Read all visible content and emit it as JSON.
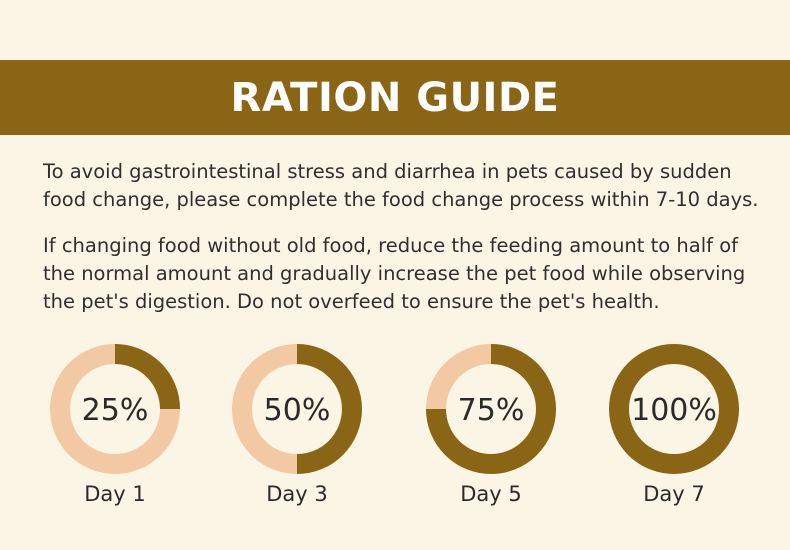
{
  "banner": {
    "title": "RATION GUIDE",
    "background_color": "#8a6515"
  },
  "paragraphs": [
    "To avoid gastrointestinal stress and diarrhea in pets caused by sudden food change, please complete the food change process within 7-10 days.",
    "If changing food without old food, reduce the feeding amount to half of the normal amount and gradually increase the pet food while observing the pet's digestion. Do not overfeed to ensure the pet's health."
  ],
  "colors": {
    "new_food": "#8a6515",
    "old_food": "#f3c9a3",
    "background": "#fbf5e6"
  },
  "schedule": [
    {
      "percent_label": "25%",
      "fraction": 0.25,
      "day_label": "Day 1"
    },
    {
      "percent_label": "50%",
      "fraction": 0.5,
      "day_label": "Day 3"
    },
    {
      "percent_label": "75%",
      "fraction": 0.75,
      "day_label": "Day 5"
    },
    {
      "percent_label": "100%",
      "fraction": 1.0,
      "day_label": "Day 7"
    }
  ]
}
